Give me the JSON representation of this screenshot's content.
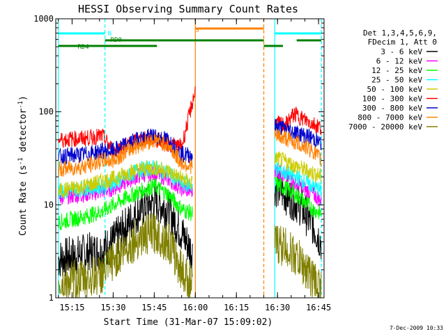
{
  "chart_data": {
    "type": "line",
    "title": "HESSI Observing Summary Count Rates",
    "xlabel": "Start Time (31-Mar-07 15:09:02)",
    "ylabel_main": "Count Rate (s",
    "ylabel_sup1": "-1",
    "ylabel_mid": " detector",
    "ylabel_sup2": "-1",
    "ylabel_end": ")",
    "y_scale": "log",
    "ylim": [
      1,
      1000
    ],
    "xlim": [
      "15:09:02",
      "16:47"
    ],
    "x_ticks": [
      "15:15",
      "15:30",
      "15:45",
      "16:00",
      "16:15",
      "16:30",
      "16:45"
    ],
    "y_ticks": [
      "1",
      "10",
      "100",
      "1000"
    ],
    "legend_header": [
      "Det 1,3,4,5,6,9,",
      "FDecim 1, Att 0"
    ],
    "legend_position": "right",
    "series": [
      {
        "name": "3 - 6 keV",
        "color": "#000000",
        "points": [
          [
            "15:10",
            2.6
          ],
          [
            "15:20",
            3.0
          ],
          [
            "15:26",
            3.2
          ],
          [
            "15:30",
            4
          ],
          [
            "15:35",
            6
          ],
          [
            "15:40",
            9
          ],
          [
            "15:45",
            11
          ],
          [
            "15:50",
            9
          ],
          [
            "15:55",
            5
          ],
          [
            "15:59",
            3
          ],
          [
            "16:29",
            16
          ],
          [
            "16:33",
            13
          ],
          [
            "16:38",
            10
          ],
          [
            "16:43",
            6
          ],
          [
            "16:46",
            4
          ]
        ]
      },
      {
        "name": "6 - 12 keV",
        "color": "#ff00ff",
        "points": [
          [
            "15:10",
            12
          ],
          [
            "15:20",
            13
          ],
          [
            "15:26",
            14
          ],
          [
            "15:30",
            15
          ],
          [
            "15:35",
            18
          ],
          [
            "15:40",
            21
          ],
          [
            "15:45",
            22
          ],
          [
            "15:50",
            19
          ],
          [
            "15:55",
            15
          ],
          [
            "15:59",
            14
          ],
          [
            "16:29",
            24
          ],
          [
            "16:33",
            20
          ],
          [
            "16:38",
            16
          ],
          [
            "16:43",
            13
          ],
          [
            "16:46",
            11
          ]
        ]
      },
      {
        "name": "12 - 25 keV",
        "color": "#00ff00",
        "points": [
          [
            "15:10",
            6.5
          ],
          [
            "15:20",
            7.5
          ],
          [
            "15:26",
            8.5
          ],
          [
            "15:30",
            10
          ],
          [
            "15:35",
            12
          ],
          [
            "15:40",
            14
          ],
          [
            "15:45",
            16
          ],
          [
            "15:50",
            13
          ],
          [
            "15:55",
            9
          ],
          [
            "15:59",
            8
          ],
          [
            "16:29",
            17
          ],
          [
            "16:33",
            15
          ],
          [
            "16:38",
            12
          ],
          [
            "16:43",
            9
          ],
          [
            "16:46",
            8
          ]
        ]
      },
      {
        "name": "25 - 50 keV",
        "color": "#00ffff",
        "points": [
          [
            "15:10",
            14
          ],
          [
            "15:20",
            15
          ],
          [
            "15:26",
            16
          ],
          [
            "15:30",
            17
          ],
          [
            "15:35",
            20
          ],
          [
            "15:40",
            24
          ],
          [
            "15:45",
            25
          ],
          [
            "15:50",
            22
          ],
          [
            "15:55",
            17
          ],
          [
            "15:59",
            16
          ],
          [
            "16:29",
            25
          ],
          [
            "16:33",
            22
          ],
          [
            "16:38",
            19
          ],
          [
            "16:43",
            16
          ],
          [
            "16:46",
            14
          ]
        ]
      },
      {
        "name": "50 - 100 keV",
        "color": "#cccc00",
        "points": [
          [
            "15:10",
            14
          ],
          [
            "15:20",
            16
          ],
          [
            "15:26",
            18
          ],
          [
            "15:30",
            19
          ],
          [
            "15:35",
            22
          ],
          [
            "15:40",
            24
          ],
          [
            "15:45",
            25
          ],
          [
            "15:50",
            23
          ],
          [
            "15:55",
            19
          ],
          [
            "15:59",
            17
          ],
          [
            "16:29",
            32
          ],
          [
            "16:33",
            29
          ],
          [
            "16:38",
            25
          ],
          [
            "16:43",
            22
          ],
          [
            "16:46",
            20
          ]
        ]
      },
      {
        "name": "100 - 300 keV",
        "color": "#ff0000",
        "points": [
          [
            "15:10",
            50
          ],
          [
            "15:20",
            52
          ],
          [
            "15:26",
            55
          ],
          [
            "15:30",
            38
          ],
          [
            "15:35",
            44
          ],
          [
            "15:40",
            50
          ],
          [
            "15:45",
            52
          ],
          [
            "15:50",
            45
          ],
          [
            "15:55",
            42
          ],
          [
            "16:00",
            170
          ],
          [
            "16:29",
            75
          ],
          [
            "16:33",
            72
          ],
          [
            "16:36",
            95
          ],
          [
            "16:40",
            82
          ],
          [
            "16:46",
            68
          ]
        ]
      },
      {
        "name": "300 - 800 keV",
        "color": "#0000cc",
        "points": [
          [
            "15:10",
            33
          ],
          [
            "15:20",
            35
          ],
          [
            "15:26",
            38
          ],
          [
            "15:30",
            38
          ],
          [
            "15:35",
            45
          ],
          [
            "15:40",
            52
          ],
          [
            "15:45",
            55
          ],
          [
            "15:50",
            50
          ],
          [
            "15:55",
            35
          ],
          [
            "15:59",
            34
          ],
          [
            "16:29",
            70
          ],
          [
            "16:33",
            66
          ],
          [
            "16:38",
            58
          ],
          [
            "16:43",
            52
          ],
          [
            "16:46",
            45
          ]
        ]
      },
      {
        "name": "800 - 7000 keV",
        "color": "#ff8000",
        "points": [
          [
            "15:10",
            24
          ],
          [
            "15:20",
            26
          ],
          [
            "15:26",
            30
          ],
          [
            "15:30",
            30
          ],
          [
            "15:35",
            38
          ],
          [
            "15:40",
            45
          ],
          [
            "15:45",
            50
          ],
          [
            "15:50",
            44
          ],
          [
            "15:55",
            28
          ],
          [
            "15:59",
            26
          ],
          [
            "16:29",
            55
          ],
          [
            "16:33",
            52
          ],
          [
            "16:38",
            45
          ],
          [
            "16:43",
            38
          ],
          [
            "16:46",
            30
          ]
        ]
      },
      {
        "name": "7000 - 20000 keV",
        "color": "#808000",
        "points": [
          [
            "15:10",
            1.4
          ],
          [
            "15:20",
            1.6
          ],
          [
            "15:26",
            1.8
          ],
          [
            "15:30",
            2.5
          ],
          [
            "15:35",
            3.5
          ],
          [
            "15:40",
            4.5
          ],
          [
            "15:45",
            5
          ],
          [
            "15:50",
            4
          ],
          [
            "15:55",
            2
          ],
          [
            "15:59",
            1.3
          ],
          [
            "16:29",
            4
          ],
          [
            "16:33",
            3.5
          ],
          [
            "16:38",
            2.5
          ],
          [
            "16:43",
            1.6
          ],
          [
            "16:46",
            1.3
          ]
        ]
      }
    ],
    "annotations": {
      "N": {
        "label": "N",
        "color": "#00ffff",
        "lines": [
          "15:10",
          "15:27",
          "16:29",
          "16:46"
        ],
        "bars": [
          [
            "15:10",
            "15:27"
          ],
          [
            "16:29",
            "16:46"
          ]
        ]
      },
      "S": {
        "label": "S",
        "color": "#ff8000",
        "lines": [
          "16:00",
          "16:25"
        ],
        "bars": [
          [
            "16:00",
            "16:25"
          ]
        ]
      },
      "RD0": {
        "label": "RD0",
        "color": "#008000",
        "bars": [
          [
            "15:27",
            "15:46"
          ],
          [
            "15:46",
            "16:25"
          ],
          [
            "16:37",
            "16:46"
          ]
        ]
      },
      "RD4": {
        "label": "RD4",
        "color": "#008000",
        "bars": [
          [
            "15:10",
            "15:46"
          ],
          [
            "16:25",
            "16:32"
          ]
        ]
      }
    },
    "footer_date": "7-Dec-2009 10:33"
  }
}
